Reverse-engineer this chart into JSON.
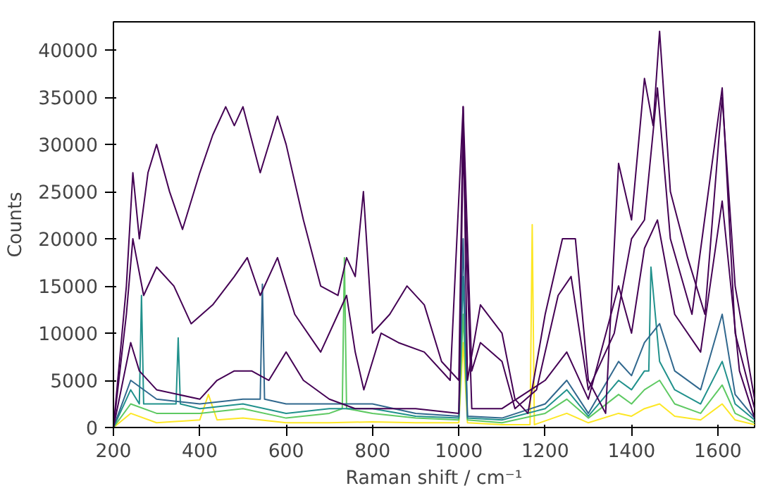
{
  "chart_data": {
    "type": "line",
    "xlabel": "Raman shift / cm⁻¹",
    "ylabel": "Counts",
    "xlim": [
      200,
      1685
    ],
    "ylim": [
      0,
      43000
    ],
    "xticks": [
      200,
      400,
      600,
      800,
      1000,
      1200,
      1400,
      1600
    ],
    "yticks": [
      0,
      5000,
      10000,
      15000,
      20000,
      25000,
      30000,
      35000,
      40000
    ],
    "grid": false,
    "series": [
      {
        "color": "#fde725",
        "x": [
          200,
          240,
          300,
          400,
          420,
          440,
          500,
          600,
          700,
          800,
          900,
          1000,
          1010,
          1020,
          1100,
          1165,
          1170,
          1175,
          1250,
          1300,
          1370,
          1400,
          1430,
          1465,
          1500,
          1560,
          1610,
          1640,
          1685
        ],
        "values": [
          0,
          1500,
          500,
          800,
          3500,
          800,
          1000,
          500,
          500,
          600,
          500,
          500,
          9000,
          500,
          300,
          300,
          21500,
          300,
          1500,
          500,
          1500,
          1200,
          2000,
          2500,
          1200,
          800,
          2500,
          800,
          300
        ]
      },
      {
        "color": "#5ec962",
        "x": [
          200,
          240,
          300,
          400,
          500,
          600,
          700,
          730,
          735,
          740,
          800,
          900,
          1000,
          1010,
          1020,
          1100,
          1200,
          1250,
          1300,
          1370,
          1400,
          1430,
          1465,
          1500,
          1560,
          1610,
          1640,
          1685
        ],
        "values": [
          0,
          2500,
          1500,
          1500,
          2000,
          1000,
          1500,
          2000,
          18000,
          2000,
          1500,
          1000,
          800,
          12000,
          800,
          500,
          1500,
          3000,
          1000,
          3500,
          2500,
          4000,
          5000,
          2500,
          1500,
          4500,
          1500,
          500
        ]
      },
      {
        "color": "#21918c",
        "x": [
          200,
          240,
          260,
          265,
          270,
          300,
          345,
          350,
          355,
          400,
          500,
          600,
          700,
          800,
          900,
          1000,
          1010,
          1020,
          1100,
          1200,
          1250,
          1300,
          1370,
          1400,
          1430,
          1440,
          1445,
          1465,
          1500,
          1560,
          1610,
          1640,
          1685
        ],
        "values": [
          0,
          4000,
          2500,
          14000,
          2500,
          2500,
          2500,
          9500,
          2500,
          2000,
          2500,
          1500,
          2000,
          2000,
          1200,
          1000,
          16000,
          1000,
          800,
          2000,
          4000,
          1200,
          5000,
          4000,
          6000,
          6000,
          17000,
          7000,
          4000,
          2500,
          7000,
          2500,
          800
        ]
      },
      {
        "color": "#31688e",
        "x": [
          200,
          240,
          300,
          400,
          500,
          540,
          545,
          550,
          600,
          700,
          800,
          900,
          1000,
          1010,
          1020,
          1100,
          1200,
          1250,
          1300,
          1370,
          1400,
          1430,
          1465,
          1500,
          1560,
          1610,
          1640,
          1685
        ],
        "values": [
          0,
          5000,
          3000,
          2500,
          3000,
          3000,
          15200,
          3000,
          2500,
          2500,
          2500,
          1500,
          1200,
          20000,
          1200,
          1000,
          2500,
          5000,
          1500,
          7000,
          5500,
          9000,
          11000,
          6000,
          4000,
          12000,
          3500,
          1000
        ]
      },
      {
        "color": "#440154",
        "x": [
          200,
          240,
          260,
          300,
          400,
          440,
          480,
          520,
          560,
          600,
          640,
          700,
          760,
          800,
          900,
          1000,
          1010,
          1030,
          1100,
          1200,
          1250,
          1300,
          1370,
          1400,
          1430,
          1460,
          1500,
          1560,
          1610,
          1650,
          1685
        ],
        "values": [
          0,
          9000,
          6000,
          4000,
          3000,
          5000,
          6000,
          6000,
          5000,
          8000,
          5000,
          3000,
          2000,
          2000,
          2000,
          1500,
          30000,
          2000,
          2000,
          5000,
          8000,
          3000,
          15000,
          10000,
          19000,
          22000,
          12000,
          8000,
          24000,
          6000,
          1000
        ]
      },
      {
        "color": "#440154",
        "x": [
          200,
          230,
          245,
          270,
          300,
          340,
          380,
          430,
          480,
          510,
          540,
          580,
          620,
          680,
          720,
          740,
          760,
          780,
          820,
          860,
          920,
          980,
          1010,
          1030,
          1050,
          1100,
          1130,
          1180,
          1230,
          1260,
          1300,
          1360,
          1400,
          1430,
          1460,
          1490,
          1540,
          1610,
          1640,
          1685
        ],
        "values": [
          0,
          12000,
          20000,
          14000,
          17000,
          15000,
          11000,
          13000,
          16000,
          18000,
          14000,
          18000,
          12000,
          8000,
          12000,
          14000,
          8000,
          4000,
          10000,
          9000,
          8000,
          5000,
          34000,
          6000,
          9000,
          7000,
          2000,
          4000,
          14000,
          16000,
          4000,
          10000,
          20000,
          22000,
          36000,
          20000,
          12000,
          36000,
          10000,
          2000
        ]
      },
      {
        "color": "#440154",
        "x": [
          200,
          230,
          245,
          260,
          280,
          300,
          330,
          360,
          400,
          430,
          460,
          480,
          500,
          540,
          580,
          600,
          640,
          680,
          720,
          740,
          760,
          779,
          800,
          840,
          880,
          920,
          960,
          1000,
          1010,
          1020,
          1050,
          1100,
          1130,
          1160,
          1200,
          1240,
          1270,
          1300,
          1340,
          1370,
          1400,
          1430,
          1450,
          1465,
          1490,
          1530,
          1570,
          1610,
          1640,
          1685
        ],
        "values": [
          0,
          15000,
          27000,
          20000,
          27000,
          30000,
          25000,
          21000,
          27000,
          31000,
          34000,
          32000,
          34000,
          27000,
          33000,
          30000,
          22000,
          15000,
          14000,
          18000,
          16000,
          25000,
          10000,
          12000,
          15000,
          13000,
          7000,
          5000,
          34000,
          5000,
          13000,
          10000,
          3000,
          1500,
          12000,
          20000,
          20000,
          5000,
          1500,
          28000,
          22000,
          37000,
          32000,
          42000,
          25000,
          18000,
          12000,
          35000,
          15000,
          3000
        ]
      }
    ]
  }
}
